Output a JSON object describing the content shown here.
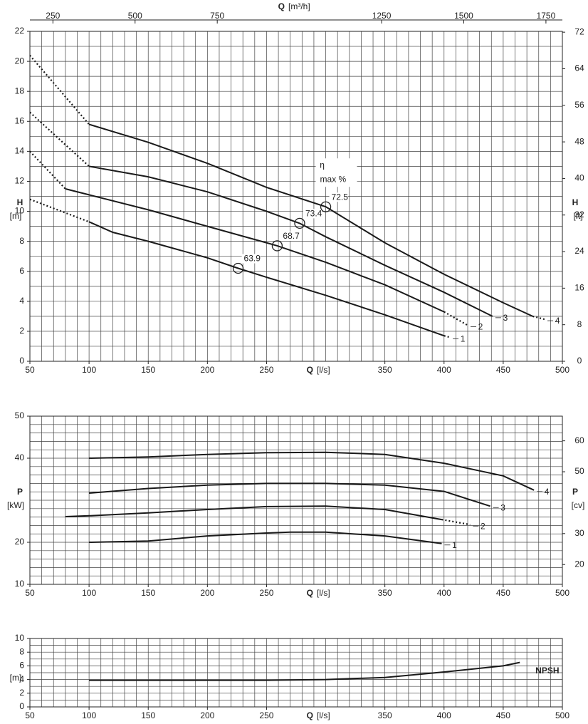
{
  "chart_data": [
    {
      "type": "line",
      "x_label": "Q",
      "x_label_unit": "[l/s]",
      "x2_label": "Q",
      "x2_label_unit": "[m³/h]",
      "y_label": "H",
      "y_label_unit": "[m]",
      "y2_label": "H",
      "y2_label_unit": "[ft]",
      "xlim": [
        50,
        500
      ],
      "xticks": [
        50,
        100,
        150,
        200,
        250,
        350,
        400,
        450,
        500
      ],
      "x_grid_step": 10,
      "x2lim": [
        180,
        1800
      ],
      "x2ticks": [
        250,
        500,
        750,
        1250,
        1500,
        1750
      ],
      "ylim": [
        0,
        22
      ],
      "yticks": [
        0,
        2,
        4,
        6,
        8,
        10,
        12,
        14,
        16,
        18,
        20,
        22
      ],
      "y_grid_step": 1,
      "y2lim": [
        0,
        72.18
      ],
      "y2ticks": [
        0,
        8,
        16,
        24,
        32,
        40,
        48,
        56,
        64,
        72
      ],
      "grid": true,
      "color": "#1a1a1a",
      "series": [
        {
          "name": "1",
          "x": [
            50,
            100,
            120,
            150,
            200,
            226,
            250,
            300,
            350,
            400,
            405
          ],
          "values": [
            10.8,
            9.3,
            8.6,
            8.0,
            6.9,
            6.2,
            5.6,
            4.4,
            3.1,
            1.7,
            1.6
          ],
          "dotted_below_x": 100,
          "dotted_above_x": 400
        },
        {
          "name": "2",
          "x": [
            50,
            80,
            100,
            150,
            200,
            259,
            300,
            350,
            400,
            420
          ],
          "values": [
            14.0,
            11.5,
            11.1,
            10.1,
            9.0,
            7.7,
            6.6,
            5.1,
            3.3,
            2.4
          ],
          "dotted_below_x": 80,
          "dotted_above_x": 400
        },
        {
          "name": "3",
          "x": [
            50,
            100,
            150,
            200,
            250,
            278,
            300,
            350,
            400,
            441
          ],
          "values": [
            16.6,
            13.0,
            12.3,
            11.3,
            10.0,
            9.2,
            8.3,
            6.4,
            4.6,
            3.0
          ],
          "dotted_below_x": 100
        },
        {
          "name": "4",
          "x": [
            50,
            100,
            150,
            200,
            250,
            300,
            350,
            400,
            450,
            475,
            485
          ],
          "values": [
            20.4,
            15.8,
            14.6,
            13.2,
            11.6,
            10.3,
            7.9,
            5.8,
            3.9,
            3.0,
            2.8
          ],
          "dotted_below_x": 100,
          "dotted_above_x": 475
        }
      ],
      "efficiency": {
        "title": "η",
        "subtitle": "max %",
        "x": [
          226,
          259,
          278,
          300
        ],
        "y": [
          6.2,
          7.7,
          9.2,
          10.3
        ],
        "values": [
          63.9,
          68.7,
          73.4,
          72.5
        ]
      }
    },
    {
      "type": "line",
      "x_label": "Q",
      "x_label_unit": "[l/s]",
      "y_label": "P",
      "y_label_unit": "[kW]",
      "y2_label": "P",
      "y2_label_unit": "[cv]",
      "xlim": [
        50,
        500
      ],
      "xticks": [
        50,
        100,
        150,
        200,
        250,
        350,
        400,
        450,
        500
      ],
      "x_grid_step": 10,
      "ylim": [
        10,
        50
      ],
      "yticks": [
        10,
        20,
        40,
        50
      ],
      "y_grid_step": 2,
      "y2lim": [
        13.596,
        67.98
      ],
      "y2ticks": [
        20,
        30,
        50,
        60
      ],
      "grid": true,
      "color": "#1a1a1a",
      "series": [
        {
          "name": "1",
          "x": [
            100,
            150,
            200,
            250,
            270,
            300,
            350,
            398
          ],
          "values": [
            20.0,
            20.3,
            21.5,
            22.2,
            22.4,
            22.4,
            21.5,
            19.7
          ]
        },
        {
          "name": "2",
          "x": [
            80,
            100,
            150,
            200,
            250,
            300,
            350,
            398,
            422
          ],
          "values": [
            26.1,
            26.3,
            27.0,
            27.8,
            28.5,
            28.6,
            27.8,
            25.4,
            24.2
          ],
          "dotted_above_x": 398
        },
        {
          "name": "3",
          "x": [
            100,
            150,
            200,
            250,
            300,
            350,
            400,
            439
          ],
          "values": [
            31.7,
            32.8,
            33.6,
            34.0,
            34.0,
            33.6,
            32.1,
            28.6
          ]
        },
        {
          "name": "4",
          "x": [
            100,
            150,
            200,
            250,
            300,
            350,
            400,
            450,
            476
          ],
          "values": [
            40.0,
            40.3,
            40.9,
            41.3,
            41.4,
            40.9,
            38.8,
            35.8,
            32.4
          ]
        }
      ]
    },
    {
      "type": "line",
      "x_label": "Q",
      "x_label_unit": "[l/s]",
      "y_label_unit": "[m]",
      "xlim": [
        50,
        500
      ],
      "xticks": [
        50,
        100,
        150,
        200,
        250,
        350,
        400,
        450,
        500
      ],
      "x_grid_step": 10,
      "ylim": [
        0,
        10
      ],
      "yticks": [
        0,
        2,
        4,
        6,
        8,
        10
      ],
      "y_grid_step": 1,
      "grid": true,
      "color": "#1a1a1a",
      "series": [
        {
          "name": "NPSH",
          "x": [
            100,
            200,
            250,
            300,
            350,
            400,
            450,
            464
          ],
          "values": [
            3.9,
            3.9,
            3.9,
            4.0,
            4.3,
            5.1,
            6.0,
            6.5
          ]
        }
      ]
    }
  ]
}
